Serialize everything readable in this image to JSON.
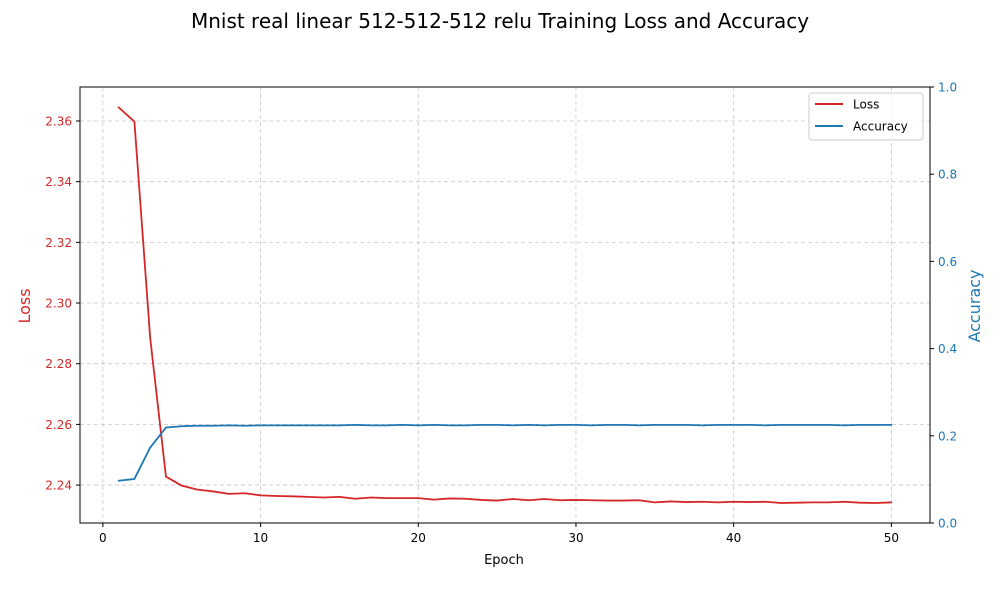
{
  "chart_data": {
    "type": "line",
    "title": "Mnist real linear 512-512-512 relu Training Loss and Accuracy",
    "xlabel": "Epoch",
    "ylabel_left": "Loss",
    "ylabel_right": "Accuracy",
    "xlim": [
      -1.45,
      52.45
    ],
    "ylim_left": [
      2.2275,
      2.3712
    ],
    "ylim_right": [
      0.0,
      1.0
    ],
    "xticks": [
      0,
      10,
      20,
      30,
      40,
      50
    ],
    "yticks_left": [
      2.24,
      2.26,
      2.28,
      2.3,
      2.32,
      2.34,
      2.36
    ],
    "yticks_right": [
      0.0,
      0.2,
      0.4,
      0.6,
      0.8,
      1.0
    ],
    "xtick_labels": [
      "0",
      "10",
      "20",
      "30",
      "40",
      "50"
    ],
    "ytick_labels_left": [
      "2.24",
      "2.26",
      "2.28",
      "2.30",
      "2.32",
      "2.34",
      "2.36"
    ],
    "ytick_labels_right": [
      "0.0",
      "0.2",
      "0.4",
      "0.6",
      "0.8",
      "1.0"
    ],
    "grid": true,
    "legend_position": "top-right",
    "colors": {
      "loss": "#d62728",
      "accuracy": "#1f77b4"
    },
    "x": [
      1,
      2,
      3,
      4,
      5,
      6,
      7,
      8,
      9,
      10,
      11,
      12,
      13,
      14,
      15,
      16,
      17,
      18,
      19,
      20,
      21,
      22,
      23,
      24,
      25,
      26,
      27,
      28,
      29,
      30,
      31,
      32,
      33,
      34,
      35,
      36,
      37,
      38,
      39,
      40,
      41,
      42,
      43,
      44,
      45,
      46,
      47,
      48,
      49,
      50
    ],
    "series": [
      {
        "name": "Loss",
        "axis": "left",
        "values": [
          2.3645,
          2.3598,
          2.2885,
          2.2428,
          2.2398,
          2.2385,
          2.2379,
          2.2371,
          2.2373,
          2.2366,
          2.2364,
          2.2363,
          2.2361,
          2.2359,
          2.2361,
          2.2355,
          2.2359,
          2.2357,
          2.2357,
          2.2357,
          2.2352,
          2.2356,
          2.2355,
          2.2351,
          2.2349,
          2.2354,
          2.235,
          2.2354,
          2.235,
          2.2351,
          2.235,
          2.2349,
          2.2349,
          2.235,
          2.2343,
          2.2346,
          2.2344,
          2.2345,
          2.2343,
          2.2345,
          2.2344,
          2.2345,
          2.2341,
          2.2342,
          2.2343,
          2.2343,
          2.2345,
          2.2342,
          2.2341,
          2.2343
        ]
      },
      {
        "name": "Accuracy",
        "axis": "right",
        "values": [
          0.097,
          0.101,
          0.173,
          0.219,
          0.222,
          0.223,
          0.223,
          0.224,
          0.223,
          0.224,
          0.224,
          0.224,
          0.224,
          0.224,
          0.224,
          0.225,
          0.224,
          0.224,
          0.225,
          0.224,
          0.225,
          0.224,
          0.224,
          0.225,
          0.225,
          0.224,
          0.225,
          0.224,
          0.225,
          0.225,
          0.224,
          0.225,
          0.225,
          0.224,
          0.225,
          0.225,
          0.225,
          0.224,
          0.225,
          0.225,
          0.225,
          0.224,
          0.225,
          0.225,
          0.225,
          0.225,
          0.224,
          0.225,
          0.225,
          0.225
        ]
      }
    ]
  }
}
